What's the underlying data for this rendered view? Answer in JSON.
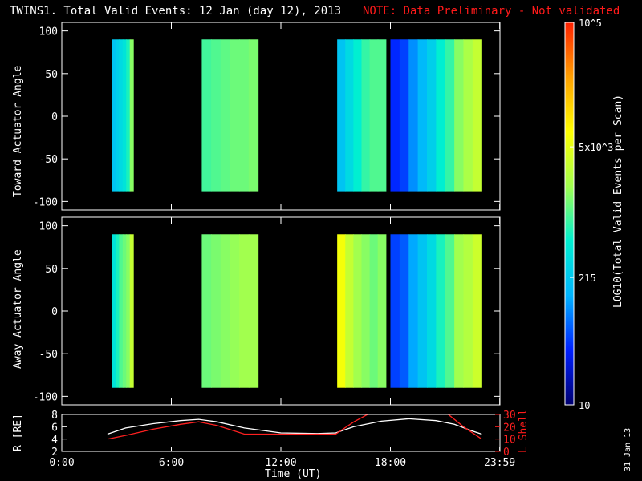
{
  "title": {
    "main": "TWINS1. Total Valid Events: 12 Jan (day  12), 2013",
    "note": "NOTE: Data Preliminary - Not validated"
  },
  "stamp": "31 Jan 13",
  "colorbar": {
    "label": "LOG10(Total Valid Events per Scan)",
    "ticks": [
      "10",
      "215",
      "5x10^3",
      "10^5"
    ],
    "scale": "log",
    "range": [
      10,
      100000
    ],
    "colormap": [
      "#000070",
      "#0020ff",
      "#00b4ff",
      "#00f0d0",
      "#a0ff50",
      "#ffff00",
      "#ffa000",
      "#ff2000"
    ]
  },
  "chart_data": [
    {
      "type": "heatmap",
      "title": "",
      "ylabel": "Toward Actuator Angle",
      "xlabel": "",
      "xlim": [
        "0:00",
        "23:59"
      ],
      "ylim": [
        -110,
        110
      ],
      "yticks": [
        "100",
        "50",
        "0",
        "-50",
        "-100"
      ],
      "xticks": [
        "0:00",
        "6:00",
        "12:00",
        "18:00",
        "23:59"
      ],
      "data_angle_range": [
        -88,
        90
      ],
      "intervals": [
        {
          "start": "2:45",
          "end": "3:55",
          "profile": [
            2.3,
            2.4,
            2.5,
            2.6,
            2.8,
            3.2
          ]
        },
        {
          "start": "7:40",
          "end": "10:45",
          "profile": [
            2.95,
            3.0,
            3.05,
            3.1,
            3.1,
            3.15
          ]
        },
        {
          "start": "15:05",
          "end": "17:45",
          "profile": [
            2.3,
            2.5,
            2.7,
            2.9,
            3.0,
            3.0
          ]
        },
        {
          "start": "18:00",
          "end": "23:00",
          "profile": [
            1.6,
            1.7,
            2.0,
            2.2,
            2.4,
            2.7,
            2.9,
            3.2,
            3.35,
            3.5
          ]
        }
      ]
    },
    {
      "type": "heatmap",
      "title": "",
      "ylabel": "Away Actuator Angle",
      "xlabel": "",
      "xlim": [
        "0:00",
        "23:59"
      ],
      "ylim": [
        -110,
        110
      ],
      "yticks": [
        "100",
        "50",
        "0",
        "-50",
        "-100"
      ],
      "xticks": [
        "0:00",
        "6:00",
        "12:00",
        "18:00",
        "23:59"
      ],
      "data_angle_range": [
        -90,
        90
      ],
      "intervals": [
        {
          "start": "2:45",
          "end": "3:55",
          "profile": [
            2.6,
            2.8,
            3.0,
            3.1,
            3.2,
            3.5
          ]
        },
        {
          "start": "7:40",
          "end": "10:45",
          "profile": [
            3.1,
            3.15,
            3.2,
            3.25,
            3.3,
            3.3
          ]
        },
        {
          "start": "15:05",
          "end": "17:45",
          "profile": [
            3.8,
            3.5,
            3.3,
            3.2,
            3.1,
            3.2
          ]
        },
        {
          "start": "18:00",
          "end": "23:00",
          "profile": [
            1.7,
            1.8,
            2.1,
            2.3,
            2.5,
            2.8,
            3.0,
            3.3,
            3.4,
            3.55
          ]
        }
      ]
    },
    {
      "type": "line",
      "title": "",
      "xlabel": "Time (UT)",
      "xticks": [
        "0:00",
        "6:00",
        "12:00",
        "18:00",
        "23:59"
      ],
      "xlim": [
        0,
        24
      ],
      "ylabel": "R [RE]",
      "ylim": [
        2,
        8
      ],
      "yticks": [
        "2",
        "4",
        "6",
        "8"
      ],
      "y2label": "L Shell",
      "y2lim": [
        0,
        30
      ],
      "y2ticks": [
        "0",
        "10",
        "20",
        "30"
      ],
      "series": [
        {
          "color": "#ffffff",
          "axis": "left",
          "x": [
            2.5,
            3.5,
            5.0,
            6.5,
            7.5,
            8.5,
            10.0,
            12.0,
            14.0,
            15.0,
            16.0,
            17.5,
            19.0,
            20.5,
            21.5,
            22.5,
            23.0
          ],
          "y": [
            4.8,
            5.8,
            6.5,
            7.0,
            7.2,
            6.8,
            5.8,
            5.0,
            4.9,
            5.0,
            6.0,
            6.9,
            7.3,
            7.0,
            6.4,
            5.3,
            4.8
          ]
        },
        {
          "color": "#ff2020",
          "axis": "right",
          "x": [
            2.5,
            3.5,
            5.0,
            6.5,
            7.5,
            8.5,
            10.0,
            12.0,
            14.0,
            15.0,
            16.0,
            17.0,
            21.0,
            22.0,
            23.0
          ],
          "y": [
            10,
            13,
            18,
            22,
            24,
            21,
            14,
            14,
            14,
            14,
            24,
            32,
            32,
            20,
            10
          ]
        }
      ]
    }
  ]
}
